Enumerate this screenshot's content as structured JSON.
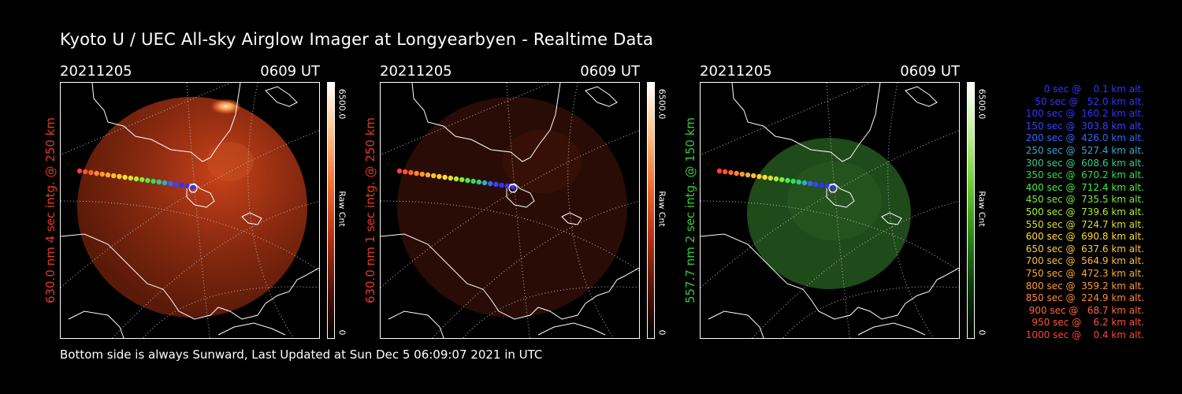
{
  "title": "Kyoto U / UEC All-sky Airglow Imager at Longyearbyen - Realtime Data",
  "panels": [
    {
      "date": "20211205",
      "time": "0609 UT",
      "side_label": "630.0 nm 4 sec intg. @ 250 km",
      "label_color": "#e8391e",
      "cbar_max": "6500.0",
      "cbar_min": "0",
      "cbar_title": "Raw Cnt",
      "image_tint": "red-bright"
    },
    {
      "date": "20211205",
      "time": "0609 UT",
      "side_label": "630.0 nm 1 sec intg. @ 250 km",
      "label_color": "#e8391e",
      "cbar_max": "6500.0",
      "cbar_min": "0",
      "cbar_title": "Raw Cnt",
      "image_tint": "red-dim"
    },
    {
      "date": "20211205",
      "time": "0609 UT",
      "side_label": "557.7 nm 2 sec intg. @ 150 km",
      "label_color": "#33cc33",
      "cbar_max": "6500.0",
      "cbar_min": "0",
      "cbar_title": "Raw Cnt",
      "image_tint": "green"
    }
  ],
  "legend": [
    {
      "text": "0 sec @    0.1 km alt.",
      "color": "#3333ff"
    },
    {
      "text": "50 sec @   52.0 km alt.",
      "color": "#3333ff"
    },
    {
      "text": "100 sec @  160.2 km alt.",
      "color": "#3333ff"
    },
    {
      "text": "150 sec @  303.8 km alt.",
      "color": "#3344ff"
    },
    {
      "text": "200 sec @  426.0 km alt.",
      "color": "#3366ff"
    },
    {
      "text": "250 sec @  527.4 km alt.",
      "color": "#33aacc"
    },
    {
      "text": "300 sec @  608.6 km alt.",
      "color": "#33cc88"
    },
    {
      "text": "350 sec @  670.2 km alt.",
      "color": "#33dd55"
    },
    {
      "text": "400 sec @  712.4 km alt.",
      "color": "#44ee44"
    },
    {
      "text": "450 sec @  735.5 km alt.",
      "color": "#77ee33"
    },
    {
      "text": "500 sec @  739.6 km alt.",
      "color": "#aaee33"
    },
    {
      "text": "550 sec @  724.7 km alt.",
      "color": "#dddd33"
    },
    {
      "text": "600 sec @  690.8 km alt.",
      "color": "#ffdd33"
    },
    {
      "text": "650 sec @  637.6 km alt.",
      "color": "#ffcc33"
    },
    {
      "text": "700 sec @  564.9 km alt.",
      "color": "#ffbb33"
    },
    {
      "text": "750 sec @  472.3 km alt.",
      "color": "#ffaa33"
    },
    {
      "text": "800 sec @  359.2 km alt.",
      "color": "#ff9933"
    },
    {
      "text": "850 sec @  224.9 km alt.",
      "color": "#ff8833"
    },
    {
      "text": "900 sec @   68.7 km alt.",
      "color": "#ff6633"
    },
    {
      "text": "950 sec @    6.2 km alt.",
      "color": "#ff5533"
    },
    {
      "text": "1000 sec @    0.4 km alt.",
      "color": "#ff4433"
    }
  ],
  "footer": "Bottom side is always Sunward, Last Updated at Sun Dec  5 06:09:07 2021 in UTC"
}
